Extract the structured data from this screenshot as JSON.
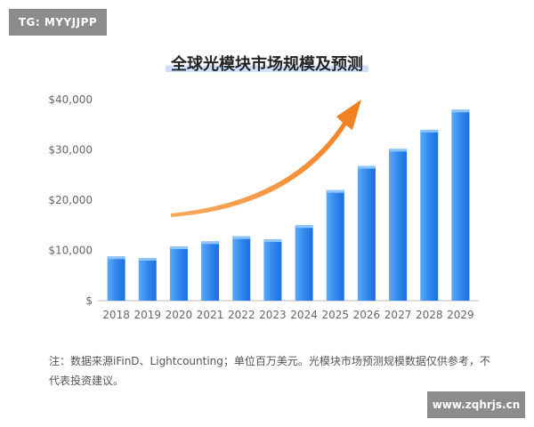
{
  "tag": "TG: MYYJJPP",
  "watermark": "www.zqhrjs.cn",
  "note": "注：数据来源iFinD、Lightcounting；单位百万美元。光模块市场预测规模数据仅供参考，不代表投资建议。",
  "colors": {
    "bar_light": "#5aa9f5",
    "bar_dark": "#1d6fe0",
    "arrow": "#f2892a",
    "axis_text": "#666666"
  },
  "chart_data": {
    "type": "bar",
    "title": "全球光模块市场规模及预测",
    "categories": [
      "2018",
      "2019",
      "2020",
      "2021",
      "2022",
      "2023",
      "2024",
      "2025",
      "2026",
      "2027",
      "2028",
      "2029"
    ],
    "values": [
      8800,
      8500,
      10800,
      11800,
      12800,
      12200,
      15000,
      22000,
      26800,
      30200,
      34000,
      38000
    ],
    "y_ticks": [
      {
        "value": 0,
        "label": "$"
      },
      {
        "value": 10000,
        "label": "$10,000"
      },
      {
        "value": 20000,
        "label": "$20,000"
      },
      {
        "value": 30000,
        "label": "$30,000"
      },
      {
        "value": 40000,
        "label": "$40,000"
      }
    ],
    "ylim": [
      0,
      40000
    ],
    "xlabel": "",
    "ylabel": "",
    "grid": false,
    "legend": "none",
    "annotation": "orange upward trend arrow"
  }
}
